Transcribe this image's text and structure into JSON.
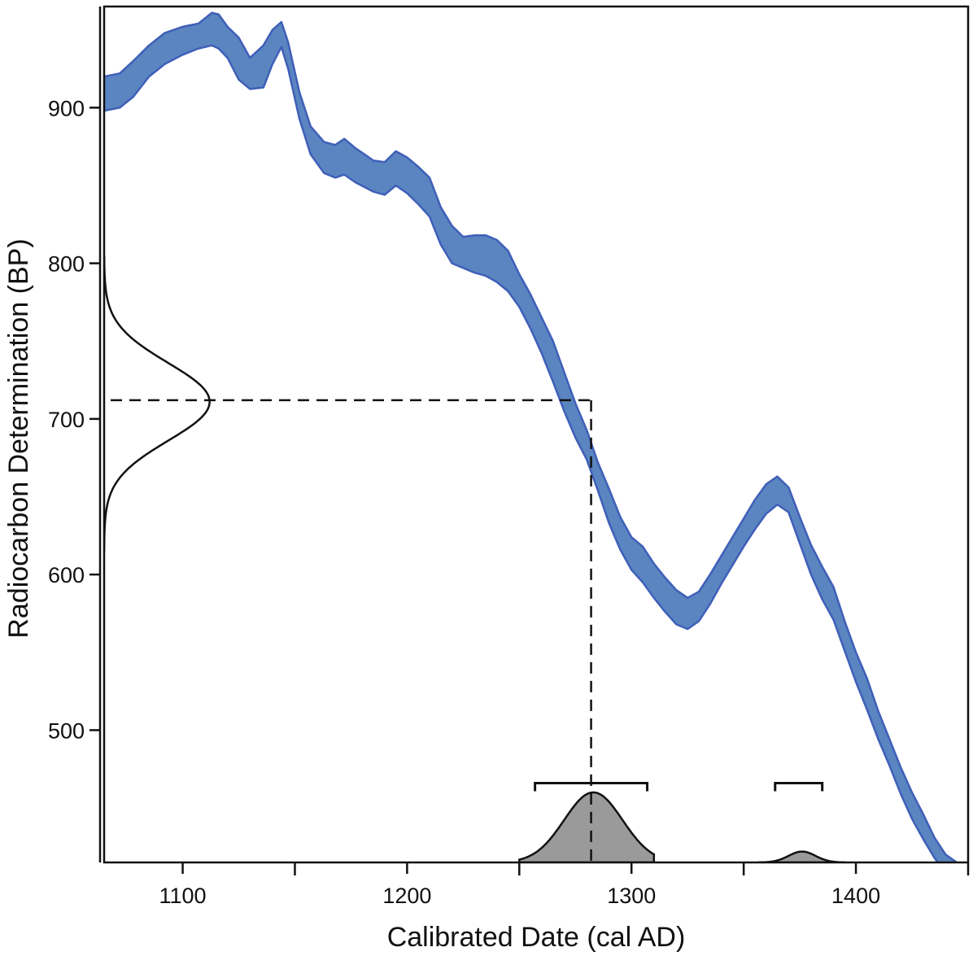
{
  "chart_data": {
    "type": "area",
    "title": "",
    "xlabel": "Calibrated Date (cal AD)",
    "ylabel": "Radiocarbon Determination (BP)",
    "xlim": [
      1065,
      1450
    ],
    "ylim": [
      415,
      965
    ],
    "x_major_ticks": [
      1100,
      1200,
      1300,
      1400
    ],
    "x_minor_ticks": [
      1150,
      1250,
      1350,
      1450
    ],
    "y_ticks": [
      500,
      600,
      700,
      800,
      900
    ],
    "grid": false,
    "legend": "none",
    "colors": {
      "calibration_band": "#5b85c0",
      "calibration_band_edge": "#3f5fb8",
      "probability_fill": "#9a9a9a",
      "lines": "#111111"
    },
    "series": [
      {
        "kind": "calibration-curve-band",
        "x": [
          1065,
          1072,
          1078,
          1085,
          1092,
          1100,
          1107,
          1113,
          1116,
          1120,
          1125,
          1130,
          1136,
          1140,
          1144,
          1147,
          1152,
          1157,
          1163,
          1168,
          1172,
          1177,
          1181,
          1185,
          1190,
          1195,
          1200,
          1205,
          1210,
          1215,
          1220,
          1225,
          1230,
          1235,
          1240,
          1245,
          1250,
          1255,
          1260,
          1265,
          1270,
          1275,
          1280,
          1285,
          1290,
          1295,
          1300,
          1305,
          1310,
          1315,
          1320,
          1325,
          1330,
          1335,
          1340,
          1345,
          1350,
          1355,
          1360,
          1365,
          1370,
          1375,
          1380,
          1385,
          1390,
          1395,
          1400,
          1405,
          1410,
          1415,
          1420,
          1425,
          1430,
          1435,
          1440,
          1445,
          1450
        ],
        "upper": [
          920,
          922,
          930,
          940,
          948,
          952,
          954,
          961,
          960,
          952,
          945,
          932,
          940,
          950,
          955,
          942,
          910,
          888,
          878,
          876,
          880,
          874,
          870,
          866,
          865,
          872,
          868,
          862,
          855,
          836,
          824,
          817,
          818,
          818,
          815,
          808,
          793,
          780,
          765,
          750,
          730,
          710,
          693,
          672,
          655,
          637,
          624,
          618,
          607,
          598,
          590,
          585,
          589,
          600,
          612,
          624,
          636,
          648,
          658,
          663,
          656,
          637,
          619,
          605,
          592,
          570,
          550,
          533,
          512,
          494,
          476,
          460,
          446,
          431,
          420,
          415,
          412
        ],
        "lower": [
          898,
          900,
          907,
          920,
          928,
          934,
          938,
          940,
          938,
          932,
          918,
          912,
          913,
          928,
          939,
          925,
          893,
          870,
          858,
          855,
          857,
          852,
          849,
          846,
          844,
          850,
          845,
          838,
          830,
          812,
          800,
          797,
          794,
          792,
          788,
          782,
          772,
          758,
          742,
          724,
          705,
          688,
          674,
          654,
          633,
          616,
          603,
          595,
          585,
          576,
          568,
          565,
          570,
          581,
          594,
          606,
          618,
          629,
          639,
          645,
          640,
          620,
          600,
          584,
          571,
          551,
          531,
          513,
          494,
          477,
          459,
          443,
          430,
          418,
          408,
          402,
          398
        ]
      },
      {
        "kind": "measurement-distribution",
        "mean": 711,
        "sigma": 25,
        "amplitude_years": 47,
        "y_range": [
          615,
          805
        ]
      },
      {
        "kind": "calibrated-probability",
        "peaks": [
          {
            "center": 1283,
            "sigma": 13,
            "height": 45,
            "x_range": [
              1250,
              1310
            ]
          },
          {
            "center": 1376,
            "sigma": 6,
            "height": 7,
            "x_range": [
              1357,
              1395
            ]
          }
        ]
      }
    ],
    "annotations": {
      "measurement_value": 712,
      "calibrated_date": 1282,
      "range_brackets": [
        {
          "from": 1257,
          "to": 1307,
          "y": 466
        },
        {
          "from": 1364,
          "to": 1385,
          "y": 466
        }
      ]
    }
  }
}
